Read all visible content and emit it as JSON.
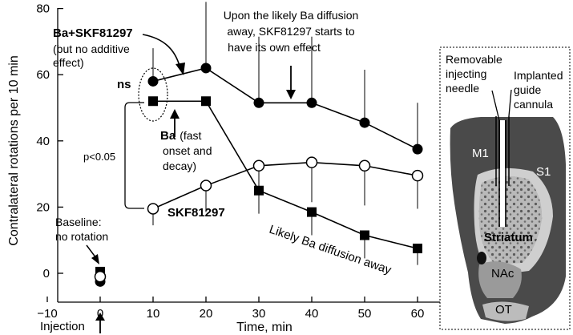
{
  "chart_data": {
    "type": "line",
    "ylabel": "Contralateral rotations per 10 min",
    "xlabel": "Time, min",
    "xlim": [
      -10,
      65
    ],
    "ylim": [
      -5,
      80
    ],
    "x_ticks": [
      "−10",
      "0",
      "10",
      "20",
      "30",
      "40",
      "50",
      "60"
    ],
    "x_tick_values": [
      -10,
      0,
      10,
      20,
      30,
      40,
      50,
      60
    ],
    "y_ticks": [
      "0",
      "20",
      "40",
      "60",
      "80"
    ],
    "y_tick_values": [
      0,
      20,
      40,
      60,
      80
    ],
    "grid": false,
    "series": [
      {
        "marker": "filled-circle",
        "x": [
          0,
          10,
          20,
          30,
          40,
          50,
          60
        ],
        "y": [
          -2.5,
          58,
          62,
          51.5,
          51.5,
          45.5,
          37.5
        ],
        "err_up": [
          0,
          10,
          20,
          20,
          20,
          16,
          14
        ],
        "err_down": [
          0,
          0,
          0,
          0,
          0,
          0,
          0
        ]
      },
      {
        "marker": "filled-square",
        "x": [
          0,
          10,
          20,
          30,
          40,
          50,
          60
        ],
        "y": [
          0.5,
          52,
          52,
          25,
          18.5,
          11.5,
          7.5
        ],
        "err_up": [
          0,
          0,
          0,
          0,
          0,
          0,
          0
        ],
        "err_down": [
          0,
          0,
          0,
          7,
          7,
          7,
          5
        ]
      },
      {
        "marker": "open-circle",
        "x": [
          0,
          10,
          20,
          30,
          40,
          50,
          60
        ],
        "y": [
          -1,
          19.5,
          26.5,
          32.5,
          33.5,
          32.5,
          29.5
        ],
        "err_up": [
          0,
          0,
          0,
          0,
          0,
          0,
          0
        ],
        "err_down": [
          0,
          5,
          8,
          12,
          12,
          12,
          10
        ]
      }
    ],
    "annotations": {
      "ba_skf_title": "Ba+SKF81297",
      "ba_skf_sub1": "(but no additive",
      "ba_skf_sub2": "effect)",
      "ns": "ns",
      "ba_label": "Ba",
      "ba_sub1": "(fast",
      "ba_sub2": "onset and",
      "ba_sub3": "decay)",
      "pval": "p<0.05",
      "skf_label": "SKF81297",
      "baseline1": "Baseline:",
      "baseline2": "no rotation",
      "upon1": "Upon the likely Ba diffusion",
      "upon2": "away, SKF81297 starts to",
      "upon3": "have its own effect",
      "diffusion": "Likely Ba diffusion away",
      "injection": "Injection"
    },
    "inset": {
      "removable1": "Removable",
      "removable2": "injecting",
      "removable3": "needle",
      "implanted1": "Implanted",
      "implanted2": "guide",
      "implanted3": "cannula",
      "m1": "M1",
      "s1": "S1",
      "striatum": "Striatum",
      "nac": "NAc",
      "ot": "OT"
    }
  }
}
